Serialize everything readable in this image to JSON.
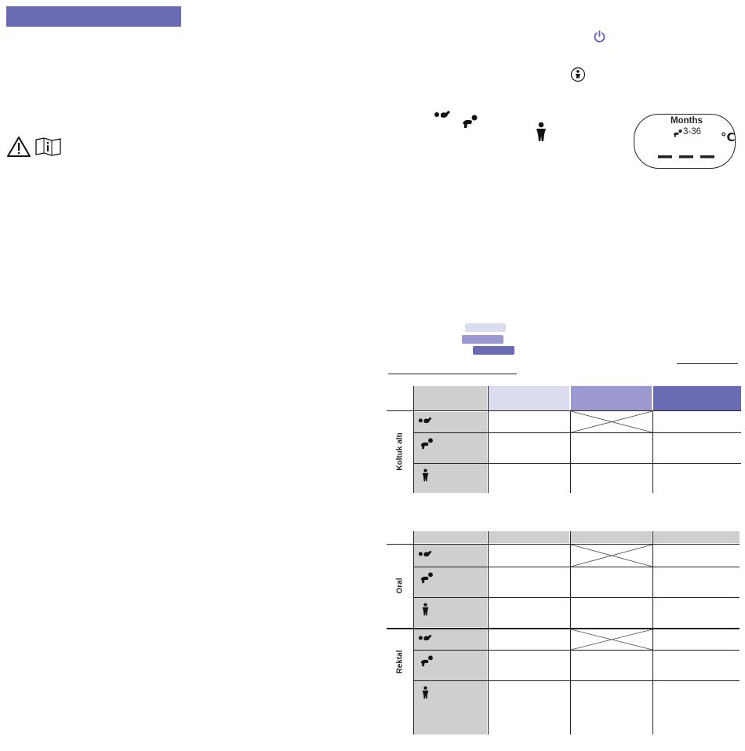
{
  "display": {
    "months_label": "Months",
    "range_label": "3-36",
    "unit_label": "°C",
    "dashes": "– – –"
  },
  "table": {
    "sections": [
      {
        "label": "Koltuk altı"
      },
      {
        "label": "Oral"
      },
      {
        "label": "Rektal"
      }
    ]
  },
  "colors": {
    "light": "#dcdcf0",
    "medium": "#9b99cf",
    "dark": "#6a6ab5",
    "grey": "#cfcfcf",
    "power_icon": "#5b57c7"
  },
  "icons": [
    "power-icon",
    "child-button-icon",
    "newborn-icon",
    "crawling-baby-icon",
    "child-icon",
    "warning-icon",
    "manual-icon"
  ]
}
